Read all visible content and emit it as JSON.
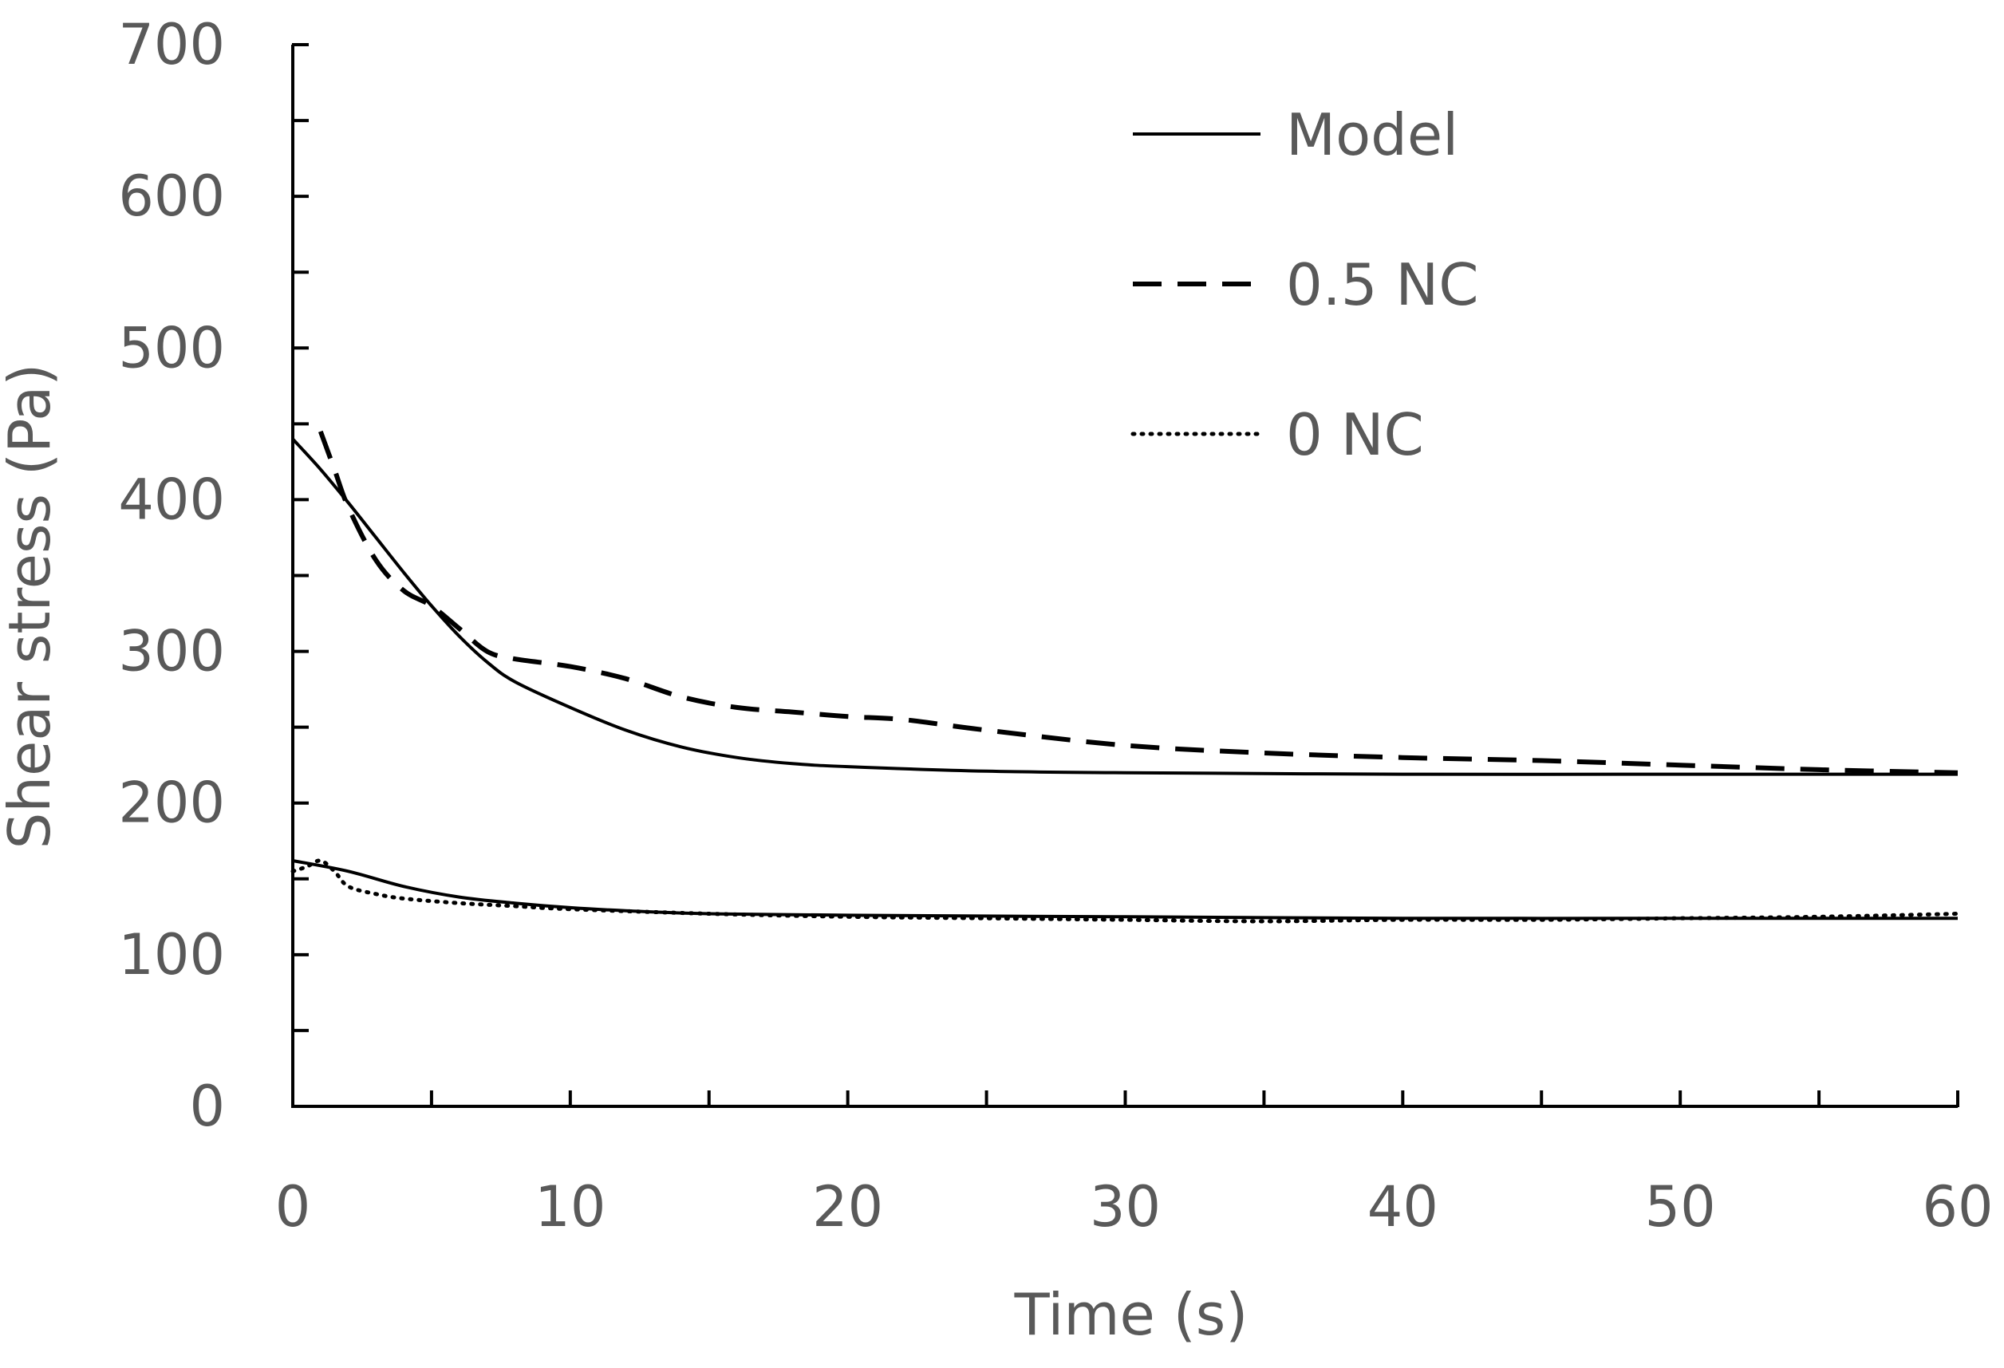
{
  "chart_data": {
    "type": "line",
    "title": "",
    "xlabel": "Time (s)",
    "ylabel": "Shear stress (Pa)",
    "xlim": [
      0,
      60
    ],
    "ylim": [
      0,
      700
    ],
    "xticks": [
      0,
      10,
      20,
      30,
      40,
      50,
      60
    ],
    "xtick_labels": [
      "0",
      "10",
      "20",
      "30",
      "40",
      "50",
      "60"
    ],
    "yticks": [
      0,
      100,
      200,
      300,
      400,
      500,
      600,
      700
    ],
    "ytick_labels": [
      "0",
      "100",
      "200",
      "300",
      "400",
      "500",
      "600",
      "700"
    ],
    "x_minor_step": 5,
    "y_minor_step": 50,
    "grid": false,
    "legend_position": "top-right",
    "legend": [
      {
        "name": "Model",
        "style": "solid"
      },
      {
        "name": "0.5 NC",
        "style": "dashed"
      },
      {
        "name": "0 NC",
        "style": "dotted"
      }
    ],
    "series": [
      {
        "name": "Model",
        "style": "solid",
        "legend_ref": "Model",
        "x": [
          0,
          1,
          2,
          3,
          4,
          5,
          6,
          7,
          8,
          10,
          12,
          14,
          16,
          18,
          20,
          25,
          30,
          40,
          50,
          60
        ],
        "y": [
          440,
          420,
          398,
          375,
          352,
          330,
          310,
          293,
          280,
          263,
          248,
          237,
          230,
          226,
          224,
          221,
          220,
          219,
          219,
          219
        ]
      },
      {
        "name": "0.5 NC",
        "style": "dashed",
        "legend_ref": "0.5 NC",
        "x": [
          1,
          1.5,
          2,
          3,
          4,
          5,
          6,
          7,
          8,
          10,
          12,
          14,
          16,
          18,
          20,
          22,
          25,
          30,
          35,
          40,
          45,
          50,
          55,
          60
        ],
        "y": [
          445,
          420,
          395,
          360,
          340,
          330,
          315,
          300,
          295,
          290,
          282,
          270,
          263,
          260,
          257,
          255,
          248,
          238,
          233,
          230,
          228,
          225,
          222,
          220
        ]
      },
      {
        "name": "Model",
        "style": "solid",
        "legend_ref": "Model",
        "x": [
          0,
          2,
          4,
          6,
          8,
          10,
          12,
          15,
          20,
          30,
          40,
          50,
          60
        ],
        "y": [
          162,
          155,
          145,
          138,
          134,
          131,
          129,
          127,
          126,
          125,
          124,
          124,
          124
        ]
      },
      {
        "name": "0 NC",
        "style": "dotted",
        "legend_ref": "0 NC",
        "x": [
          0,
          0.5,
          1,
          1.5,
          2,
          3,
          4,
          6,
          8,
          10,
          15,
          20,
          25,
          30,
          35,
          40,
          45,
          50,
          55,
          60
        ],
        "y": [
          155,
          158,
          162,
          155,
          145,
          140,
          137,
          134,
          132,
          130,
          127,
          125,
          124,
          123,
          122,
          123,
          123,
          124,
          125,
          127
        ]
      }
    ]
  }
}
